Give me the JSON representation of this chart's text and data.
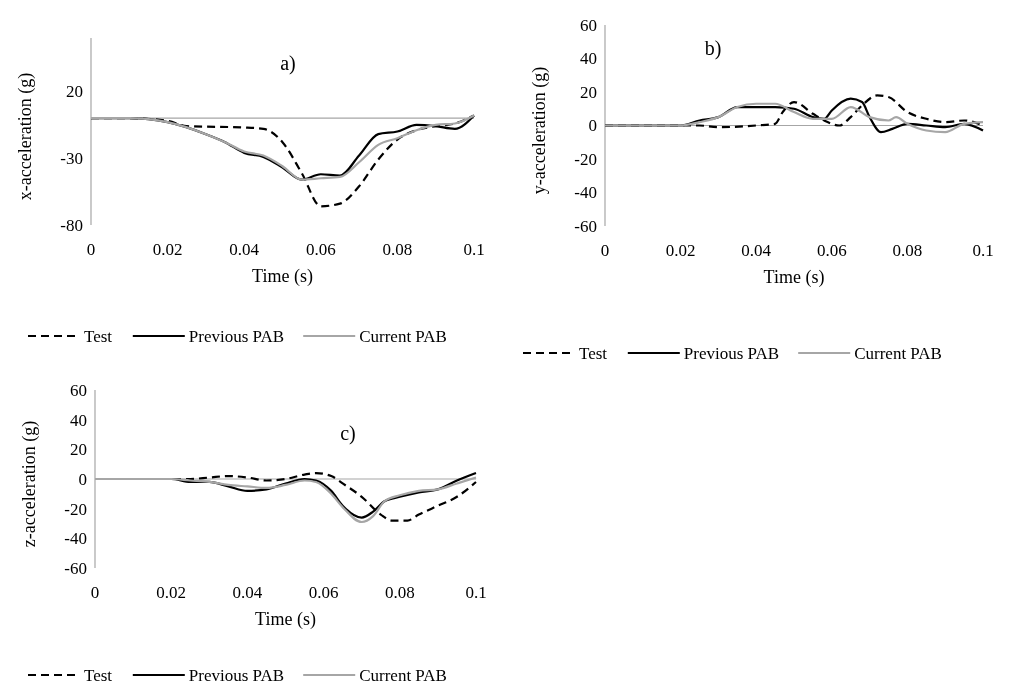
{
  "chart_data": [
    {
      "type": "line",
      "title": "a)",
      "xlabel": "Time (s)",
      "ylabel": "x-acceleration (g)",
      "xlim": [
        0,
        0.1
      ],
      "xticks": [
        0,
        0.02,
        0.04,
        0.06,
        0.08,
        0.1
      ],
      "ylim": [
        -80,
        60
      ],
      "yticks": [
        -80,
        -30,
        20
      ],
      "grid": false,
      "ref_lines": [
        {
          "axis": "y",
          "value": 0,
          "color": "#a6a6a6"
        }
      ],
      "legend": "bottom",
      "series": [
        {
          "name": "Test",
          "color": "#000000",
          "line_style": "dashed",
          "x": [
            0,
            0.01,
            0.02,
            0.025,
            0.04,
            0.045,
            0.05,
            0.055,
            0.06,
            0.065,
            0.07,
            0.075,
            0.08,
            0.085,
            0.09,
            0.095,
            0.1
          ],
          "values": [
            0,
            0,
            -2,
            -6,
            -7,
            -8,
            -18,
            -41,
            -66,
            -64,
            -51,
            -31,
            -16,
            -9,
            -6,
            -4,
            2
          ]
        },
        {
          "name": "Previous PAB",
          "color": "#000000",
          "line_style": "solid",
          "x": [
            0,
            0.01,
            0.02,
            0.03,
            0.035,
            0.04,
            0.045,
            0.05,
            0.055,
            0.06,
            0.065,
            0.07,
            0.075,
            0.08,
            0.085,
            0.09,
            0.095,
            0.1
          ],
          "values": [
            0,
            0,
            -3,
            -12,
            -18,
            -26,
            -29,
            -37,
            -46,
            -42,
            -43,
            -28,
            -12,
            -10,
            -5,
            -6,
            -8,
            2
          ]
        },
        {
          "name": "Current PAB",
          "color": "#a6a6a6",
          "line_style": "solid",
          "x": [
            0,
            0.01,
            0.02,
            0.03,
            0.035,
            0.04,
            0.045,
            0.05,
            0.055,
            0.06,
            0.065,
            0.07,
            0.075,
            0.08,
            0.085,
            0.09,
            0.095,
            0.1
          ],
          "values": [
            0,
            0,
            -3,
            -12,
            -18,
            -25,
            -28,
            -36,
            -46,
            -45,
            -44,
            -33,
            -20,
            -15,
            -9,
            -5,
            -4,
            2
          ]
        }
      ]
    },
    {
      "type": "line",
      "title": "b)",
      "xlabel": "Time (s)",
      "ylabel": "y-acceleration (g)",
      "xlim": [
        0,
        0.1
      ],
      "xticks": [
        0,
        0.02,
        0.04,
        0.06,
        0.08,
        0.1
      ],
      "ylim": [
        -60,
        60
      ],
      "yticks": [
        -60,
        -40,
        -20,
        0,
        20,
        40,
        60
      ],
      "grid": false,
      "ref_lines": [
        {
          "axis": "y",
          "value": 0,
          "color": "#a6a6a6"
        }
      ],
      "legend": "bottom",
      "series": [
        {
          "name": "Test",
          "color": "#000000",
          "line_style": "dashed",
          "x": [
            0,
            0.025,
            0.03,
            0.04,
            0.045,
            0.047,
            0.05,
            0.055,
            0.058,
            0.062,
            0.065,
            0.068,
            0.072,
            0.075,
            0.08,
            0.085,
            0.09,
            0.095,
            0.1
          ],
          "values": [
            0,
            0,
            -1,
            0,
            1,
            8,
            14,
            7,
            3,
            0,
            5,
            12,
            18,
            17,
            8,
            4,
            2,
            3,
            0
          ]
        },
        {
          "name": "Previous PAB",
          "color": "#000000",
          "line_style": "solid",
          "x": [
            0,
            0.02,
            0.025,
            0.03,
            0.035,
            0.04,
            0.045,
            0.05,
            0.055,
            0.058,
            0.06,
            0.065,
            0.068,
            0.07,
            0.073,
            0.076,
            0.08,
            0.085,
            0.09,
            0.095,
            0.1
          ],
          "values": [
            0,
            0,
            3,
            5,
            11,
            11,
            11,
            10,
            5,
            4,
            9,
            16,
            14,
            5,
            -4,
            -2,
            1,
            0,
            -1,
            1,
            -3
          ]
        },
        {
          "name": "Current PAB",
          "color": "#a6a6a6",
          "line_style": "solid",
          "x": [
            0,
            0.02,
            0.025,
            0.03,
            0.035,
            0.04,
            0.045,
            0.05,
            0.055,
            0.06,
            0.065,
            0.07,
            0.075,
            0.077,
            0.08,
            0.085,
            0.09,
            0.095,
            0.1
          ],
          "values": [
            0,
            0,
            2,
            5,
            11,
            13,
            13,
            8,
            4,
            4,
            11,
            5,
            3,
            5,
            1,
            -3,
            -4,
            1,
            2
          ]
        }
      ]
    },
    {
      "type": "line",
      "title": "c)",
      "xlabel": "Time (s)",
      "ylabel": "z-acceleration (g)",
      "xlim": [
        0,
        0.1
      ],
      "xticks": [
        0,
        0.02,
        0.04,
        0.06,
        0.08,
        0.1
      ],
      "ylim": [
        -60,
        60
      ],
      "yticks": [
        -60,
        -40,
        -20,
        0,
        20,
        40,
        60
      ],
      "grid": false,
      "ref_lines": [
        {
          "axis": "y",
          "value": 0,
          "color": "#a6a6a6"
        }
      ],
      "legend": "bottom",
      "series": [
        {
          "name": "Test",
          "color": "#000000",
          "line_style": "dashed",
          "x": [
            0,
            0.02,
            0.025,
            0.03,
            0.035,
            0.04,
            0.045,
            0.05,
            0.055,
            0.058,
            0.062,
            0.065,
            0.07,
            0.075,
            0.078,
            0.082,
            0.085,
            0.09,
            0.095,
            0.1
          ],
          "values": [
            0,
            0,
            0,
            1,
            2,
            1,
            -1,
            0,
            3,
            4,
            2,
            -3,
            -12,
            -24,
            -28,
            -28,
            -24,
            -18,
            -12,
            -2
          ]
        },
        {
          "name": "Previous PAB",
          "color": "#000000",
          "line_style": "solid",
          "x": [
            0,
            0.02,
            0.025,
            0.03,
            0.035,
            0.04,
            0.045,
            0.05,
            0.055,
            0.058,
            0.062,
            0.065,
            0.07,
            0.073,
            0.076,
            0.08,
            0.085,
            0.09,
            0.095,
            0.1
          ],
          "values": [
            0,
            0,
            -2,
            -2,
            -5,
            -8,
            -7,
            -3,
            0,
            -1,
            -8,
            -18,
            -26,
            -22,
            -15,
            -12,
            -9,
            -7,
            -1,
            4
          ]
        },
        {
          "name": "Current PAB",
          "color": "#a6a6a6",
          "line_style": "solid",
          "x": [
            0,
            0.02,
            0.025,
            0.03,
            0.035,
            0.04,
            0.045,
            0.05,
            0.055,
            0.058,
            0.062,
            0.065,
            0.07,
            0.073,
            0.076,
            0.08,
            0.085,
            0.09,
            0.095,
            0.1
          ],
          "values": [
            0,
            0,
            -1,
            -2,
            -4,
            -5,
            -6,
            -4,
            -1,
            -2,
            -10,
            -19,
            -29,
            -25,
            -15,
            -11,
            -8,
            -7,
            -3,
            1
          ]
        }
      ]
    }
  ]
}
